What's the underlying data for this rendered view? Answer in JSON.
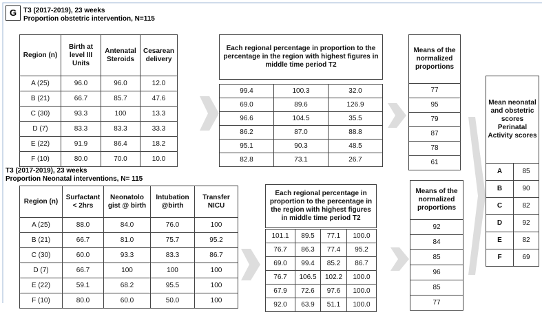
{
  "panel_label": "G",
  "obstetric": {
    "title": [
      "T3 (2017-2019), 23 weeks",
      "Proportion  obstetric intervention, N=115"
    ],
    "table": {
      "header": [
        "Region (n)",
        "Birth at level III Units",
        "Antenatal Steroids",
        "Cesarean delivery"
      ],
      "rows": [
        [
          "A (25)",
          "96.0",
          "96.0",
          "12.0"
        ],
        [
          "B (21)",
          "66.7",
          "85.7",
          "47.6"
        ],
        [
          "C (30)",
          "93.3",
          "100",
          "13.3"
        ],
        [
          "D (7)",
          "83.3",
          "83.3",
          "33.3"
        ],
        [
          "E (22)",
          "91.9",
          "86.4",
          "18.2"
        ],
        [
          "F (10)",
          "80.0",
          "70.0",
          "10.0"
        ]
      ]
    },
    "normalized": {
      "header": "Each regional percentage in proportion to the percentage in the region with highest figures in middle time period T2",
      "rows": [
        [
          "99.4",
          "100.3",
          "32.0"
        ],
        [
          "69.0",
          "89.6",
          "126.9"
        ],
        [
          "96.6",
          "104.5",
          "35.5"
        ],
        [
          "86.2",
          "87.0",
          "88.8"
        ],
        [
          "95.1",
          "90.3",
          "48.5"
        ],
        [
          "82.8",
          "73.1",
          "26.7"
        ]
      ]
    },
    "means": {
      "header": "Means of the normalized proportions",
      "values": [
        "77",
        "95",
        "79",
        "87",
        "78",
        "61"
      ]
    }
  },
  "neonatal": {
    "title": [
      "T3 (2017-2019), 23 weeks",
      "Proportion  Neonatal interventions, N= 115"
    ],
    "table": {
      "header": [
        "Region (n)",
        "Surfactant < 2hrs",
        "Neonatolo gist @ birth",
        "Intubation @birth",
        "Transfer NICU"
      ],
      "rows": [
        [
          "A (25)",
          "88.0",
          "84.0",
          "76.0",
          "100"
        ],
        [
          "B (21)",
          "66.7",
          "81.0",
          "75.7",
          "95.2"
        ],
        [
          "C (30)",
          "60.0",
          "93.3",
          "83.3",
          "86.7"
        ],
        [
          "D (7)",
          "66.7",
          "100",
          "100",
          "100"
        ],
        [
          "E (22)",
          "59.1",
          "68.2",
          "95.5",
          "100"
        ],
        [
          "F (10)",
          "80.0",
          "60.0",
          "50.0",
          "100"
        ]
      ]
    },
    "normalized": {
      "header": "Each regional percentage in proportion  to the percentage in the region with highest figures in middle time period T2",
      "rows": [
        [
          "101.1",
          "89.5",
          "77.1",
          "100.0"
        ],
        [
          "76.7",
          "86.3",
          "77.4",
          "95.2"
        ],
        [
          "69.0",
          "99.4",
          "85.2",
          "86.7"
        ],
        [
          "76.7",
          "106.5",
          "102.2",
          "100.0"
        ],
        [
          "67.9",
          "72.6",
          "97.6",
          "100.0"
        ],
        [
          "92.0",
          "63.9",
          "51.1",
          "100.0"
        ]
      ]
    },
    "means": {
      "header": "Means of the normalized proportions",
      "values": [
        "92",
        "84",
        "85",
        "96",
        "85",
        "77"
      ]
    }
  },
  "scores": {
    "header": "Mean neonatal and obstetric scores Perinatal Activity scores",
    "rows": [
      [
        "A",
        "85"
      ],
      [
        "B",
        "90"
      ],
      [
        "C",
        "82"
      ],
      [
        "D",
        "92"
      ],
      [
        "E",
        "82"
      ],
      [
        "F",
        "69"
      ]
    ]
  }
}
